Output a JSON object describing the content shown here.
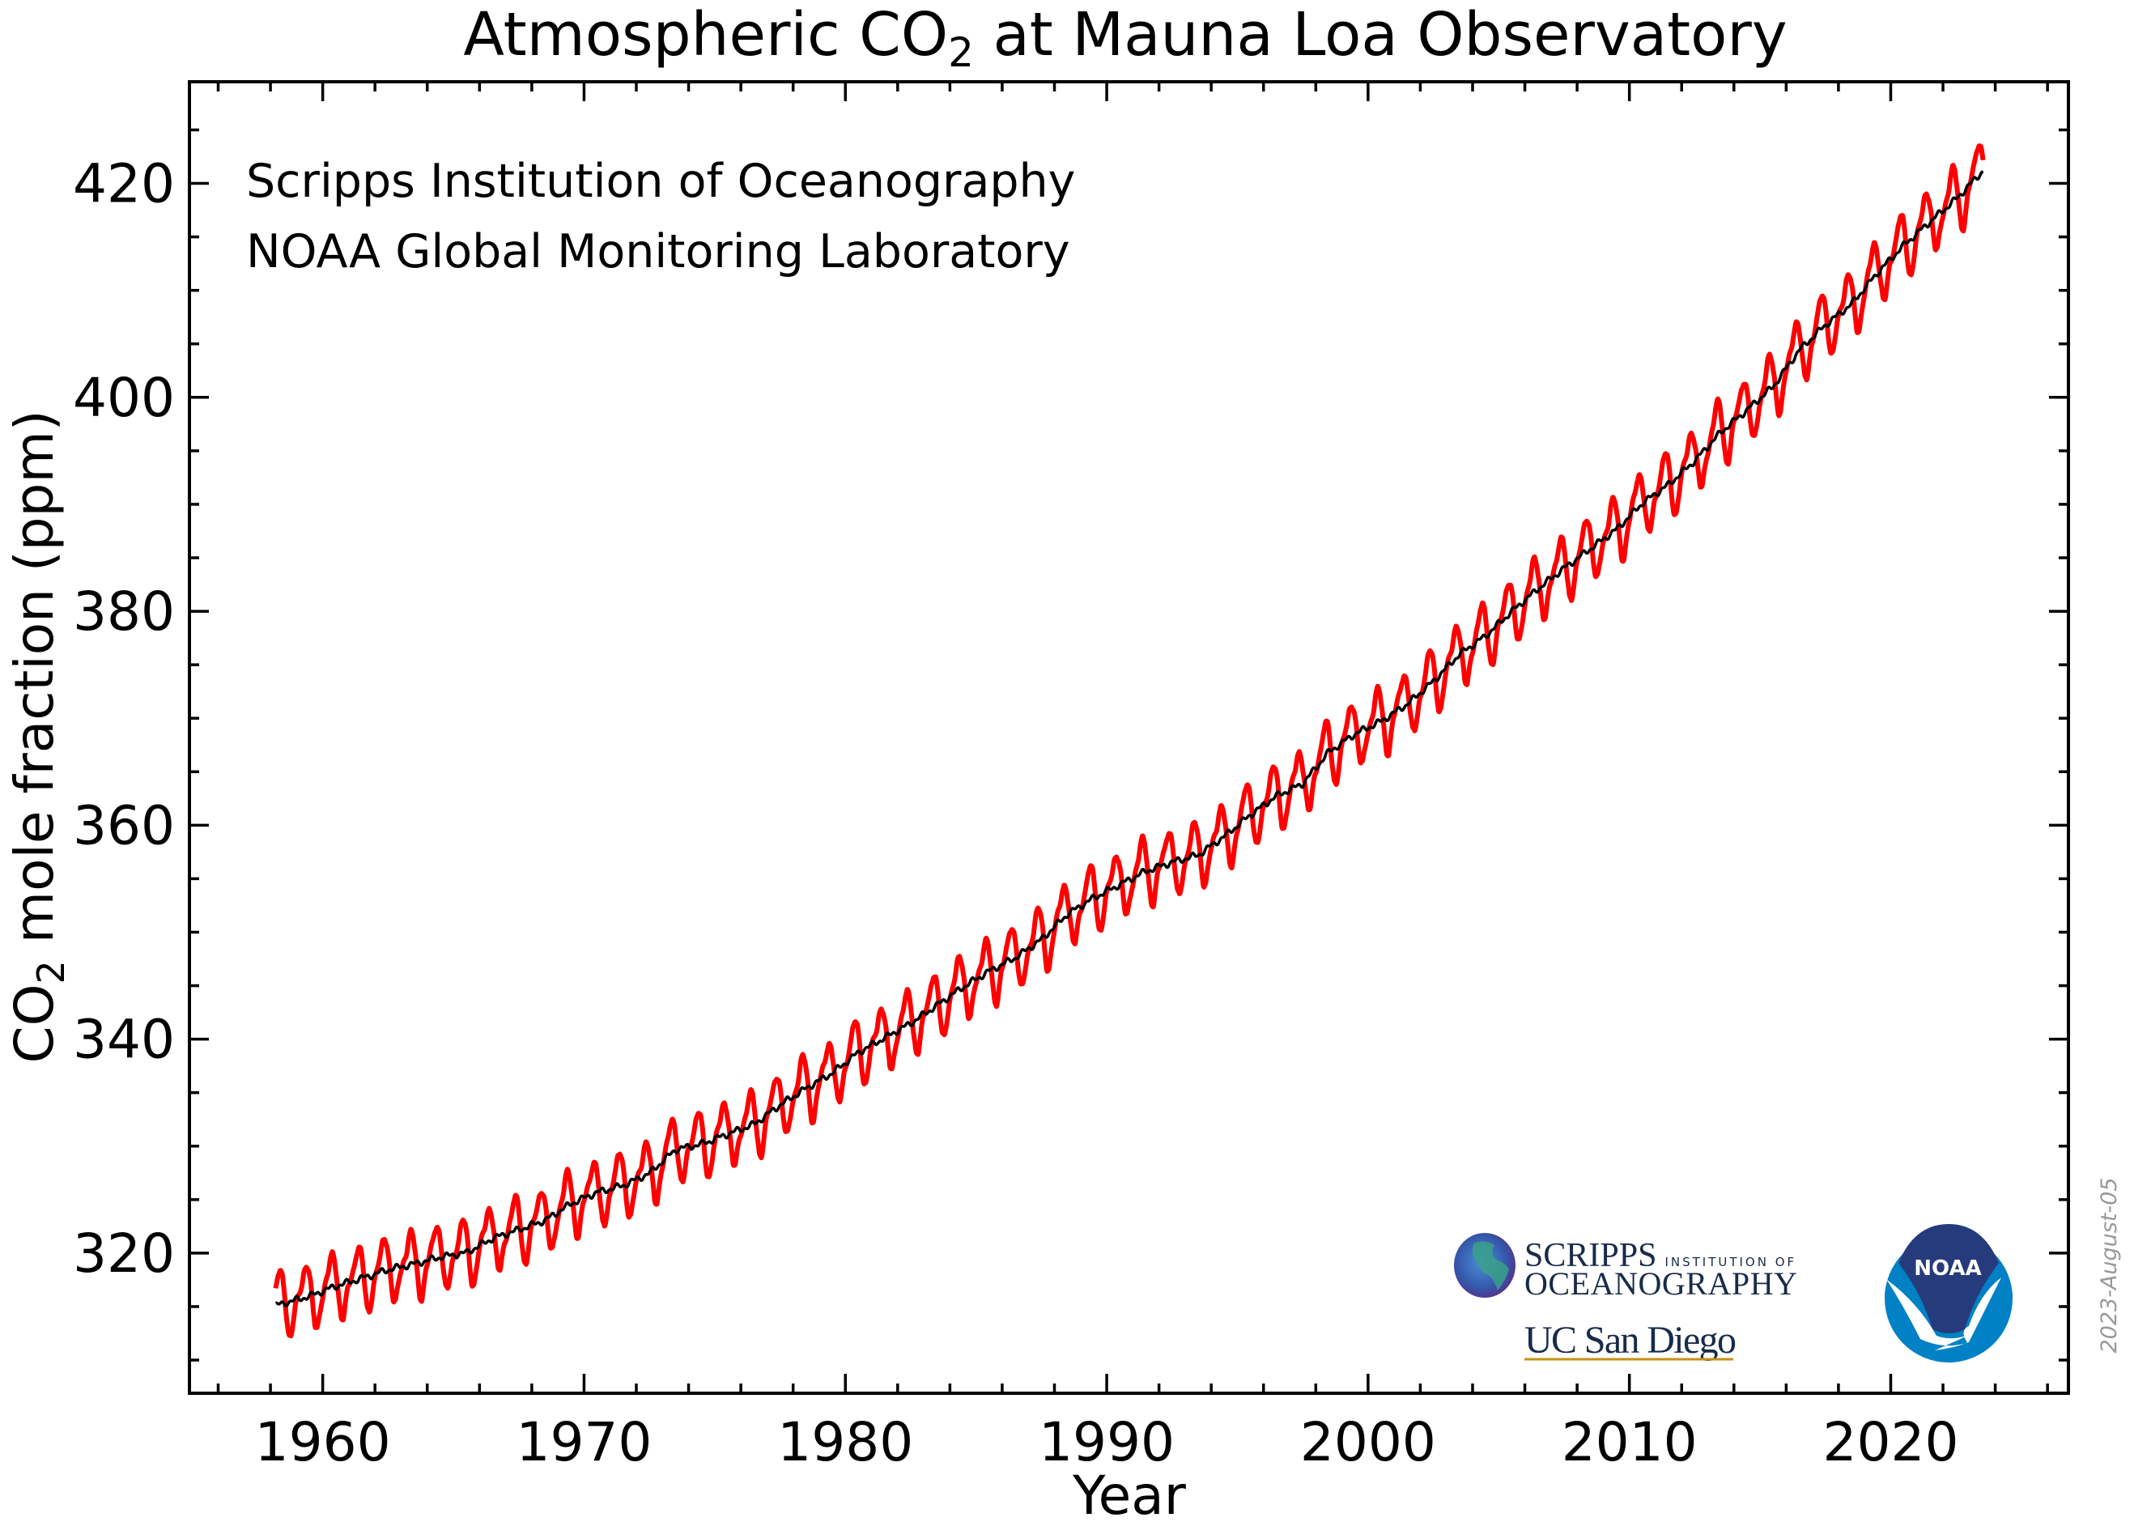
{
  "chart_data": {
    "type": "line",
    "title": "Atmospheric CO",
    "title_subscript": "2",
    "title_suffix": " at Mauna Loa Observatory",
    "xlabel": "Year",
    "ylabel": "CO",
    "ylabel_subscript": "2",
    "ylabel_suffix": " mole fraction (ppm)",
    "xlim": [
      1954.9,
      2026.8
    ],
    "ylim": [
      306.9,
      429.5
    ],
    "x_ticks": [
      1960,
      1970,
      1980,
      1990,
      2000,
      2010,
      2020
    ],
    "x_minor_step": 2,
    "y_ticks": [
      320,
      340,
      360,
      380,
      400,
      420
    ],
    "y_minor_step": 5,
    "grid": false,
    "data_start": 1958.2,
    "data_end": 2023.55,
    "series": [
      {
        "role": "monthly mean",
        "color": "#ff0000",
        "seasonal_cycle_ppm": [
          0.0,
          0.7,
          1.4,
          2.6,
          3.1,
          2.5,
          0.9,
          -1.3,
          -3.1,
          -3.3,
          -2.0,
          -0.7
        ]
      },
      {
        "role": "seasonally corrected trend",
        "color": "#000000"
      }
    ],
    "annual_mean": {
      "years": [
        1958,
        1959,
        1960,
        1961,
        1962,
        1963,
        1964,
        1965,
        1966,
        1967,
        1968,
        1969,
        1970,
        1971,
        1972,
        1973,
        1974,
        1975,
        1976,
        1977,
        1978,
        1979,
        1980,
        1981,
        1982,
        1983,
        1984,
        1985,
        1986,
        1987,
        1988,
        1989,
        1990,
        1991,
        1992,
        1993,
        1994,
        1995,
        1996,
        1997,
        1998,
        1999,
        2000,
        2001,
        2002,
        2003,
        2004,
        2005,
        2006,
        2007,
        2008,
        2009,
        2010,
        2011,
        2012,
        2013,
        2014,
        2015,
        2016,
        2017,
        2018,
        2019,
        2020,
        2021,
        2022,
        2023
      ],
      "ppm": [
        315.3,
        315.98,
        316.91,
        317.64,
        318.45,
        318.99,
        319.62,
        320.04,
        321.37,
        322.18,
        323.05,
        324.62,
        325.68,
        326.32,
        327.46,
        329.68,
        330.19,
        331.13,
        332.03,
        333.84,
        335.41,
        336.84,
        338.76,
        340.12,
        341.48,
        343.15,
        344.87,
        346.35,
        347.61,
        349.31,
        351.69,
        353.2,
        354.45,
        355.7,
        356.54,
        357.21,
        358.96,
        360.97,
        362.74,
        363.88,
        366.84,
        368.54,
        369.71,
        371.32,
        373.45,
        375.98,
        377.7,
        379.98,
        382.09,
        384.02,
        385.83,
        387.64,
        390.1,
        391.85,
        394.06,
        396.74,
        398.81,
        401.01,
        404.41,
        406.76,
        408.72,
        411.65,
        414.21,
        416.41,
        418.53,
        421.1
      ]
    },
    "annotations": [
      "Scripps Institution of Oceanography",
      "NOAA Global Monitoring Laboratory"
    ]
  },
  "logos": {
    "scripps_line1": "SCRIPPS",
    "scripps_small": "INSTITUTION OF",
    "scripps_line2": "OCEANOGRAPHY",
    "ucsd": "UC San Diego",
    "noaa": "NOAA",
    "noaa_dark": "#263b7b",
    "noaa_light": "#0081c6",
    "ucsd_navy": "#182b49",
    "ucsd_gold": "#c69214"
  },
  "date_stamp": "2023-August-05"
}
